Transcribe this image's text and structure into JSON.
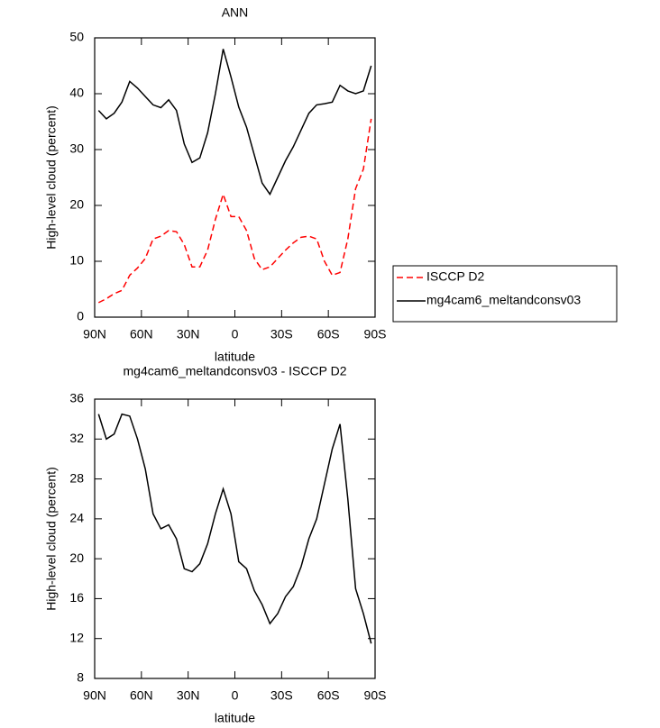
{
  "chart_data": [
    {
      "type": "line",
      "title": "ANN",
      "xlabel": "latitude",
      "ylabel": "High-level cloud (percent)",
      "x": [
        87.5,
        82.5,
        77.5,
        72.5,
        67.5,
        62.5,
        57.5,
        52.5,
        47.5,
        42.5,
        37.5,
        32.5,
        27.5,
        22.5,
        17.5,
        12.5,
        7.5,
        2.5,
        -2.5,
        -7.5,
        -12.5,
        -17.5,
        -22.5,
        -27.5,
        -32.5,
        -37.5,
        -42.5,
        -47.5,
        -52.5,
        -57.5,
        -62.5,
        -67.5,
        -72.5,
        -77.5,
        -82.5,
        -87.5
      ],
      "series": [
        {
          "name": "ISCCP D2",
          "color": "#ff0000",
          "linestyle": "dashed",
          "values": [
            2.6,
            3.3,
            4.2,
            4.8,
            7.5,
            8.8,
            10.5,
            14,
            14.5,
            15.5,
            15.3,
            13,
            9,
            9,
            12,
            17.5,
            22,
            18,
            18,
            15.5,
            10.5,
            8.5,
            9,
            10.5,
            12,
            13.3,
            14.3,
            14.5,
            14,
            10,
            7.5,
            8,
            14,
            23,
            26.5,
            35.5
          ]
        },
        {
          "name": "mg4cam6_meltandconsv03",
          "color": "#000000",
          "linestyle": "solid",
          "values": [
            37,
            35.5,
            36.5,
            38.5,
            42.2,
            41,
            39.5,
            38,
            37.5,
            38.9,
            37,
            31,
            27.7,
            28.5,
            33,
            40,
            48,
            43,
            37.6,
            34,
            29,
            24,
            22,
            25,
            28,
            30.5,
            33.5,
            36.5,
            38,
            38.2,
            38.5,
            41.5,
            40.5,
            40,
            40.5,
            45
          ]
        }
      ],
      "xlim": [
        90,
        -90
      ],
      "xticks": [
        {
          "value": 90,
          "label": "90N"
        },
        {
          "value": 60,
          "label": "60N"
        },
        {
          "value": 30,
          "label": "30N"
        },
        0,
        {
          "value": -30,
          "label": "30S"
        },
        {
          "value": -60,
          "label": "60S"
        },
        {
          "value": -90,
          "label": "90S"
        }
      ],
      "ylim": [
        0,
        50
      ],
      "yticks": [
        0,
        10,
        20,
        30,
        40,
        50
      ],
      "legend": "right"
    },
    {
      "type": "line",
      "title": "mg4cam6_meltandconsv03 - ISCCP D2",
      "xlabel": "latitude",
      "ylabel": "High-level cloud (percent)",
      "x": [
        87.5,
        82.5,
        77.5,
        72.5,
        67.5,
        62.5,
        57.5,
        52.5,
        47.5,
        42.5,
        37.5,
        32.5,
        27.5,
        22.5,
        17.5,
        12.5,
        7.5,
        2.5,
        -2.5,
        -7.5,
        -12.5,
        -17.5,
        -22.5,
        -27.5,
        -32.5,
        -37.5,
        -42.5,
        -47.5,
        -52.5,
        -57.5,
        -62.5,
        -67.5,
        -72.5,
        -77.5,
        -82.5,
        -87.5
      ],
      "series": [
        {
          "color": "#000000",
          "linestyle": "solid",
          "values": [
            34.5,
            32,
            32.5,
            34.5,
            34.3,
            32,
            29,
            24.5,
            23,
            23.4,
            22,
            19,
            18.7,
            19.5,
            21.5,
            24.5,
            27,
            24.5,
            19.7,
            19,
            16.8,
            15.4,
            13.5,
            14.5,
            16.2,
            17.2,
            19.2,
            22,
            24,
            27.5,
            31,
            33.5,
            26,
            17,
            14.5,
            11.5
          ]
        }
      ],
      "xlim": [
        90,
        -90
      ],
      "xticks": [
        {
          "value": 90,
          "label": "90N"
        },
        {
          "value": 60,
          "label": "60N"
        },
        {
          "value": 30,
          "label": "30N"
        },
        0,
        {
          "value": -30,
          "label": "30S"
        },
        {
          "value": -60,
          "label": "60S"
        },
        {
          "value": -90,
          "label": "90S"
        }
      ],
      "ylim": [
        8,
        36
      ],
      "yticks": [
        8,
        12,
        16,
        20,
        24,
        28,
        32,
        36
      ]
    }
  ]
}
